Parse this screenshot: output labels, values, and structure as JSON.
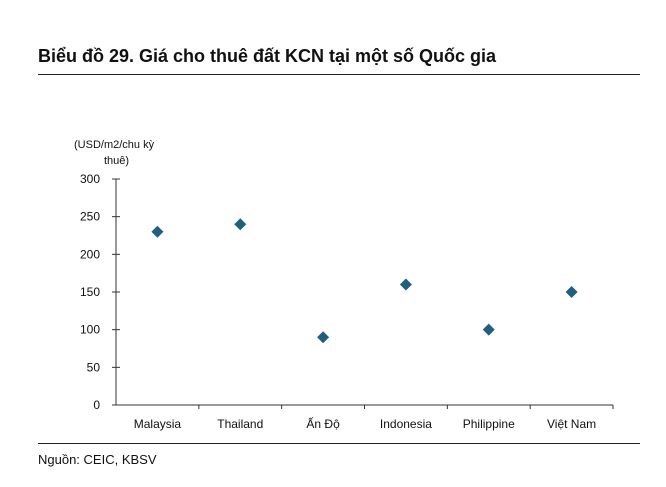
{
  "title": "Biểu đồ 29. Giá cho thuê đất KCN tại một số Quốc gia",
  "source": "Nguồn: CEIC, KBSV",
  "chart_data": {
    "type": "scatter",
    "ylabel_lines": [
      "(USD/m2/chu kỳ",
      "thuê)"
    ],
    "xlabel": "",
    "categories": [
      "Malaysia",
      "Thailand",
      "Ấn Độ",
      "Indonesia",
      "Philippine",
      "Việt Nam"
    ],
    "values": [
      230,
      240,
      90,
      160,
      100,
      150
    ],
    "ylim": [
      0,
      300
    ],
    "yticks": [
      0,
      50,
      100,
      150,
      200,
      250,
      300
    ],
    "marker": "diamond",
    "marker_color": "#1f5f7f",
    "grid": false,
    "legend": "none"
  }
}
